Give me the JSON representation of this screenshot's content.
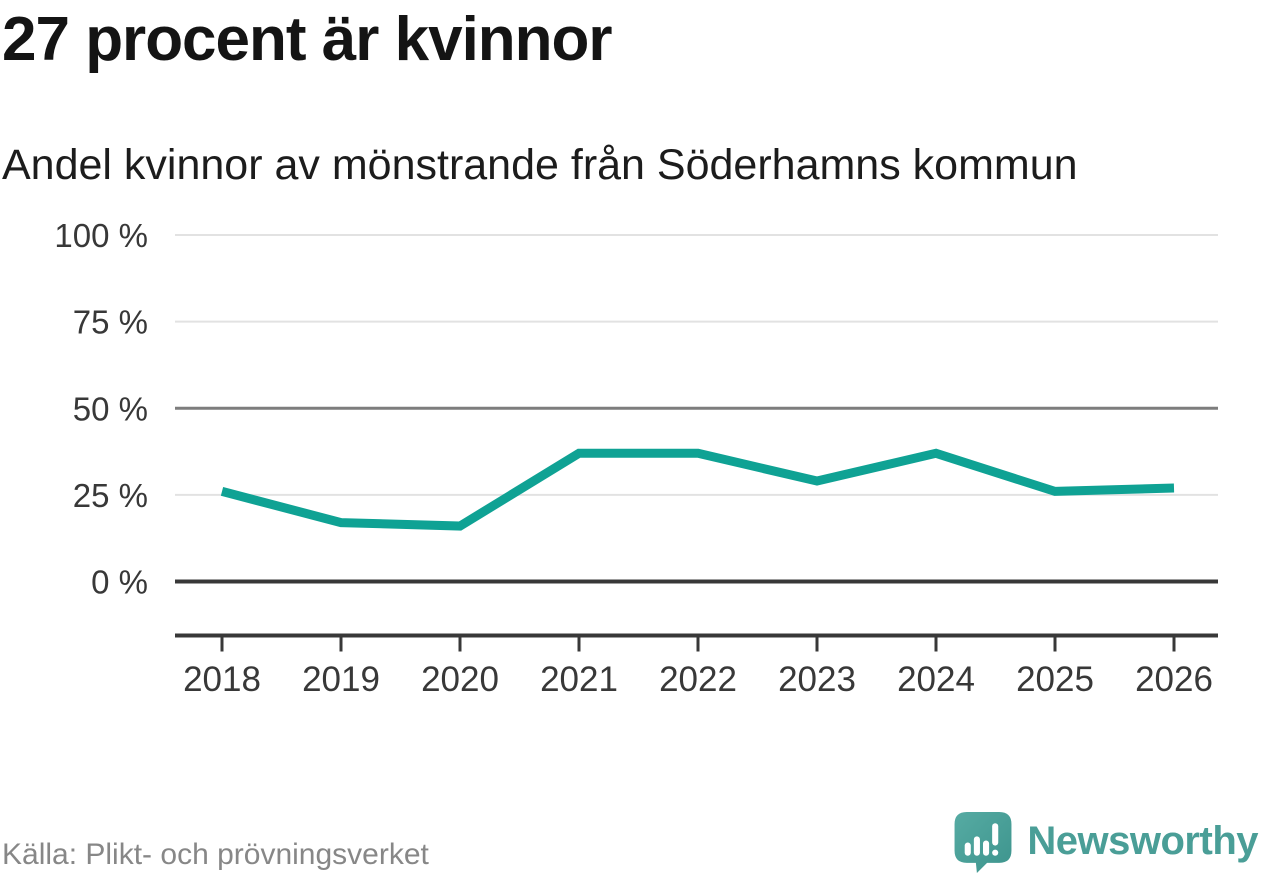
{
  "header": {
    "title": "27 procent är kvinnor",
    "subtitle": "Andel kvinnor av mönstrande från Söderhamns kommun"
  },
  "chart_data": {
    "type": "line",
    "categories": [
      "2018",
      "2019",
      "2020",
      "2021",
      "2022",
      "2023",
      "2024",
      "2025",
      "2026"
    ],
    "series": [
      {
        "name": "Andel kvinnor av mönstrande",
        "values": [
          26,
          17,
          16,
          37,
          37,
          29,
          37,
          26,
          27
        ]
      }
    ],
    "unit": "%",
    "ylim": [
      0,
      100
    ],
    "yticks": [
      {
        "value": 0,
        "label": "0 %",
        "style": "axis"
      },
      {
        "value": 25,
        "label": "25 %",
        "style": "light"
      },
      {
        "value": 50,
        "label": "50 %",
        "style": "medium"
      },
      {
        "value": 75,
        "label": "75 %",
        "style": "light"
      },
      {
        "value": 100,
        "label": "100 %",
        "style": "light"
      }
    ],
    "grid": true,
    "legend_position": "none",
    "line_color": "#0fa294"
  },
  "footer": {
    "source": "Källa: Plikt- och prövningsverket",
    "brand": "Newsworthy"
  },
  "colors": {
    "accent": "#0fa294",
    "brand_teal": "#4a9e97",
    "title_text": "#141414",
    "muted_text": "#878787",
    "axis": "#383838",
    "grid_light": "#e2e2e2",
    "grid_medium": "#7d7d7d"
  }
}
